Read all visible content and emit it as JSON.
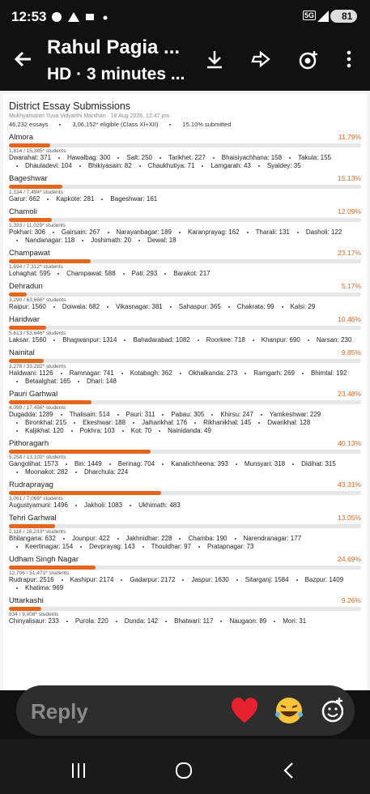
{
  "status_bar": {
    "time": "12:53",
    "network": "5G",
    "battery": "81"
  },
  "header": {
    "title": "Rahul Pagia ...",
    "subtitle": "HD · 3 minutes ..."
  },
  "image": {
    "title": "District Essay Submissions",
    "subtitle": "Mukhyamantri Yuva Vidyarthi Manthan · 18 Aug 2026, 12:47 pm",
    "stats": [
      "46,232 essays",
      "3,06,152* eligible (Class XI+XII)",
      "15.10% submitted"
    ],
    "districts": [
      {
        "name": "Almora",
        "percent": "11.79%",
        "students": "1,814 / 15,385* students",
        "blocks": [
          "Dwarahat: 371",
          "Hawalbag: 300",
          "Salt: 250",
          "Tarikhet: 227",
          "Bhaisiyachhana: 158",
          "Takula: 155",
          "Dhauladevi: 104",
          "Bhikiyasain: 82",
          "Chaukhutiya: 71",
          "Lamgarah: 43",
          "Syaldey: 35"
        ]
      },
      {
        "name": "Bageshwar",
        "percent": "15.13%",
        "students": "1,134 / 7,494* students",
        "blocks": [
          "Garur: 662",
          "Kapkote: 281",
          "Bageshwar: 161"
        ]
      },
      {
        "name": "Chamoli",
        "percent": "12.09%",
        "students": "1,333 / 11,029* students",
        "blocks": [
          "Pokhari: 306",
          "Gairsain: 267",
          "Narayanbagar: 189",
          "Karanprayag: 162",
          "Tharali: 131",
          "Dasholi: 122",
          "Nandanagar: 118",
          "Joshimath: 20",
          "Dewal: 18"
        ]
      },
      {
        "name": "Champawat",
        "percent": "23.17%",
        "students": "1,694 / 7,312* students",
        "blocks": [
          "Lohaghat: 595",
          "Champawat: 588",
          "Pati: 293",
          "Barakot: 217"
        ]
      },
      {
        "name": "Dehradun",
        "percent": "5.17%",
        "students": "3,290 / 63,666* students",
        "blocks": [
          "Raipur: 1560",
          "Doiwala: 682",
          "Vikasnagar: 381",
          "Sahaspur: 365",
          "Chakrata: 99",
          "Kalsi: 29"
        ]
      },
      {
        "name": "Haridwar",
        "percent": "10.46%",
        "students": "5,613 / 53,646* students",
        "blocks": [
          "Laksar: 1560",
          "Bhagwanpur: 1314",
          "Bahadarabad: 1082",
          "Roorkee: 718",
          "Khanpur: 690",
          "Narsan: 230"
        ]
      },
      {
        "name": "Nainital",
        "percent": "9.85%",
        "students": "3,278 / 33,282* students",
        "blocks": [
          "Haldwani: 1126",
          "Ramnagar: 741",
          "Kotabagh: 362",
          "Okhalkanda: 273",
          "Ramgarh: 269",
          "Bhimtal: 192",
          "Betaalghat: 165",
          "Dhari: 148"
        ]
      },
      {
        "name": "Pauri Garhwal",
        "percent": "23.48%",
        "students": "4,099 / 17,456* students",
        "blocks": [
          "Dugadda: 1289",
          "Thalisain: 514",
          "Pauri: 311",
          "Pabau: 305",
          "Khirsu: 247",
          "Yamkeshwar: 229",
          "Bironkhal: 215",
          "Ekeshwar: 188",
          "Jaiharikhal: 176",
          "Rikhanikhal: 145",
          "Dwarikhal: 128",
          "Kaljikhal: 120",
          "Pokhra: 103",
          "Kot: 70",
          "Nainidanda: 49"
        ]
      },
      {
        "name": "Pithoragarh",
        "percent": "40.13%",
        "students": "5,258 / 13,102* students",
        "blocks": [
          "Gangolihat: 1573",
          "Bin: 1449",
          "Berinag: 704",
          "Kanalichheena: 393",
          "Munsyari: 318",
          "Didihat: 315",
          "Moonakot: 282",
          "Dharchula: 224"
        ]
      },
      {
        "name": "Rudraprayag",
        "percent": "43.31%",
        "students": "3,061 / 7,068* students",
        "blocks": [
          "Augustyamuni: 1496",
          "Jakholi: 1083",
          "Ukhimath: 483"
        ]
      },
      {
        "name": "Tehri Garhwal",
        "percent": "13.05%",
        "students": "2,118 / 16,233* students",
        "blocks": [
          "Bhilangana: 632",
          "Jounpur: 422",
          "Jakhnidhar: 228",
          "Chamba: 190",
          "Narendranagar: 177",
          "Keertinagar: 154",
          "Devprayag: 143",
          "Thouldhar: 97",
          "Pratapnagar: 73"
        ]
      },
      {
        "name": "Udham Singh Nagar",
        "percent": "24.69%",
        "students": "12,706 / 51,471* students",
        "blocks": [
          "Rudrapur: 2516",
          "Kashipur: 2174",
          "Gadarpur: 2172",
          "Jaspur: 1630",
          "Sitarganj: 1584",
          "Bazpur: 1409",
          "Khatima: 969"
        ]
      },
      {
        "name": "Uttarkashi",
        "percent": "9.26%",
        "students": "834 / 9,008* students",
        "blocks": [
          "Chinyalisaur: 233",
          "Purola: 220",
          "Dunda: 142",
          "Bhatwari: 117",
          "Naugaon: 89",
          "Mori: 31"
        ]
      }
    ]
  },
  "reply": {
    "placeholder": "Reply"
  }
}
